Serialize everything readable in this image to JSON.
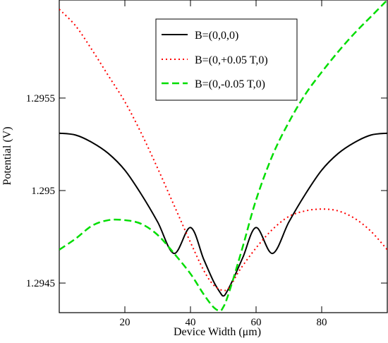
{
  "chart_data": {
    "type": "line",
    "title": "",
    "xlabel": "Device Width (μm)",
    "ylabel": "Potential (V)",
    "xlim": [
      0,
      100
    ],
    "ylim": [
      1.29434,
      1.29603
    ],
    "xticks": [
      20,
      40,
      60,
      80
    ],
    "xtick_labels": [
      "20",
      "40",
      "60",
      "80"
    ],
    "yticks": [
      1.2945,
      1.295,
      1.2955
    ],
    "ytick_labels": [
      "1.2945",
      "1.295",
      "1.2955"
    ],
    "grid": false,
    "legend_position": "top-right",
    "series": [
      {
        "name": "B=(0,0,0)",
        "color": "#000000",
        "style": "solid",
        "x": [
          0,
          5,
          10,
          15,
          20,
          25,
          30,
          35,
          40,
          44,
          47,
          49,
          50,
          51,
          53,
          56,
          60,
          65,
          70,
          75,
          80,
          85,
          90,
          95,
          100
        ],
        "y": [
          1.29531,
          1.2953,
          1.29526,
          1.2952,
          1.29511,
          1.29498,
          1.29483,
          1.29466,
          1.2948,
          1.29463,
          1.29451,
          1.29445,
          1.29443,
          1.29445,
          1.29452,
          1.29464,
          1.2948,
          1.29466,
          1.29483,
          1.29498,
          1.29511,
          1.2952,
          1.29526,
          1.2953,
          1.29531
        ]
      },
      {
        "name": "B=(0,+0.05 T,0)",
        "color": "#ff0000",
        "style": "dotted",
        "x": [
          0,
          5,
          10,
          15,
          20,
          25,
          30,
          35,
          40,
          44,
          47,
          50,
          52,
          55,
          60,
          65,
          70,
          75,
          80,
          85,
          90,
          95,
          100
        ],
        "y": [
          1.29598,
          1.29589,
          1.29576,
          1.29562,
          1.29548,
          1.29531,
          1.29512,
          1.29492,
          1.29472,
          1.29457,
          1.29449,
          1.29446,
          1.29448,
          1.29457,
          1.29469,
          1.29479,
          1.29486,
          1.29489,
          1.2949,
          1.29489,
          1.29485,
          1.29478,
          1.29468
        ]
      },
      {
        "name": "B=(0,-0.05 T,0)",
        "color": "#00dd00",
        "style": "dashed",
        "x": [
          0,
          5,
          10,
          15,
          20,
          25,
          30,
          35,
          40,
          44,
          47,
          49,
          50,
          51,
          53,
          56,
          60,
          65,
          70,
          75,
          80,
          85,
          90,
          95,
          100
        ],
        "y": [
          1.29468,
          1.29474,
          1.29481,
          1.29484,
          1.29484,
          1.29482,
          1.29476,
          1.29466,
          1.29455,
          1.29444,
          1.29437,
          1.29435,
          1.29437,
          1.29441,
          1.29452,
          1.2947,
          1.29495,
          1.29519,
          1.29537,
          1.29552,
          1.29564,
          1.29575,
          1.29585,
          1.29594,
          1.29603
        ]
      }
    ]
  }
}
